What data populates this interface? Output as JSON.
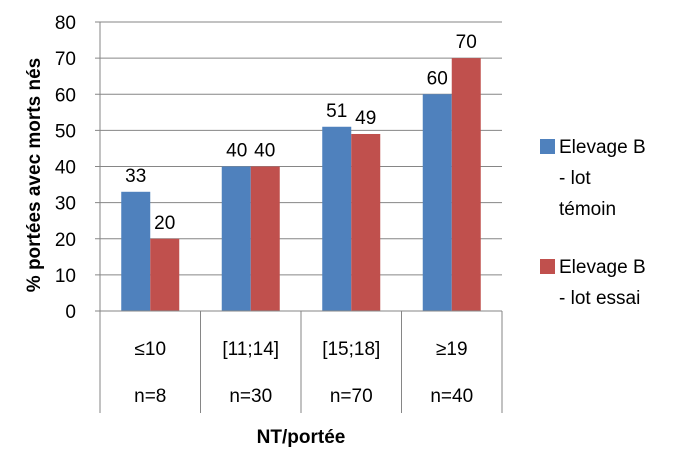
{
  "chart_data": {
    "type": "bar",
    "categories": [
      "≤10",
      "[11;14]",
      "[15;18]",
      "≥19"
    ],
    "category_counts": [
      "n=8",
      "n=30",
      "n=70",
      "n=40"
    ],
    "series": [
      {
        "name": "Elevage B - lot témoin",
        "legend_lines": [
          "Elevage B",
          "- lot",
          "témoin"
        ],
        "color": "#4F81BD",
        "values": [
          33,
          40,
          51,
          60
        ],
        "labels": [
          "33",
          "40",
          "51",
          "60"
        ]
      },
      {
        "name": "Elevage B - lot essai",
        "legend_lines": [
          "Elevage B",
          "- lot essai"
        ],
        "color": "#C0504D",
        "values": [
          20,
          40,
          49,
          70
        ],
        "labels": [
          "20",
          "40",
          "49",
          "70"
        ]
      }
    ],
    "ylabel": "% portées avec morts nés",
    "xlabel": "NT/portée",
    "ylim": [
      0,
      80
    ],
    "yticks": [
      0,
      10,
      20,
      30,
      40,
      50,
      60,
      70,
      80
    ],
    "grid": true,
    "legend_position": "right"
  }
}
